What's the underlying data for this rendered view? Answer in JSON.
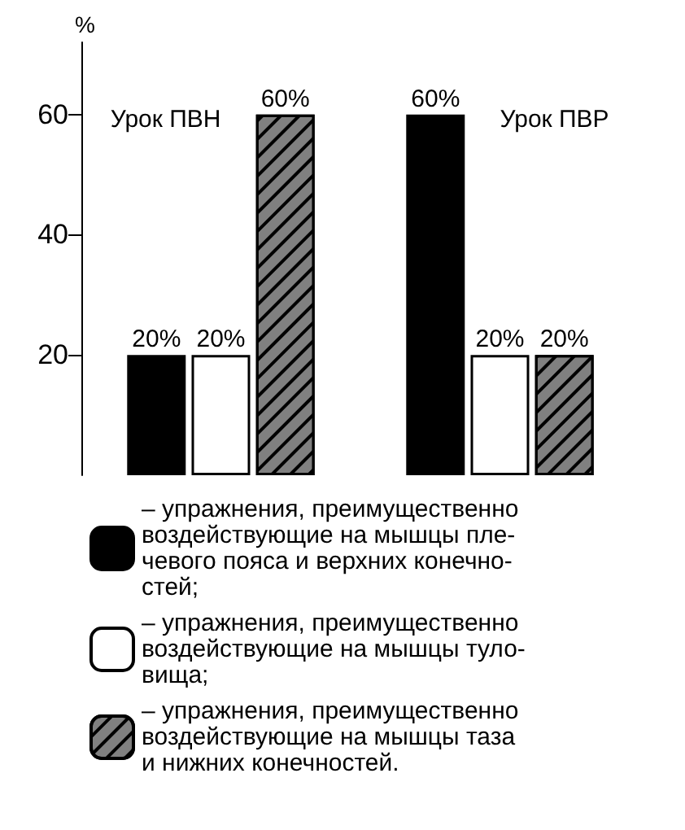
{
  "chart_data": {
    "type": "bar",
    "ylabel": "%",
    "categories": [
      "Урок ПВН",
      "Урок ПВР"
    ],
    "series": [
      {
        "name": "– упражнения, преимущественно\nвоздействующие на мышцы пле-\nчевого пояса и верхних конечно-\nстей;",
        "color": "#000000",
        "values": [
          20,
          60
        ],
        "value_labels": [
          "20%",
          "60%"
        ]
      },
      {
        "name": "– упражнения, преимущественно\nвоздействующие на мышцы туло-\nвища;",
        "color": "#ffffff",
        "values": [
          20,
          20
        ],
        "value_labels": [
          "20%",
          "20%"
        ]
      },
      {
        "name": "– упражнения, преимущественно\nвоздействующие на мышцы таза\nи нижних конечностей.",
        "color": "#808080",
        "values": [
          60,
          20
        ],
        "value_labels": [
          "60%",
          "20%"
        ]
      }
    ],
    "ylim": [
      0,
      72
    ],
    "yticks": [
      20,
      40,
      60
    ],
    "grid": false,
    "legend": "bottom"
  }
}
